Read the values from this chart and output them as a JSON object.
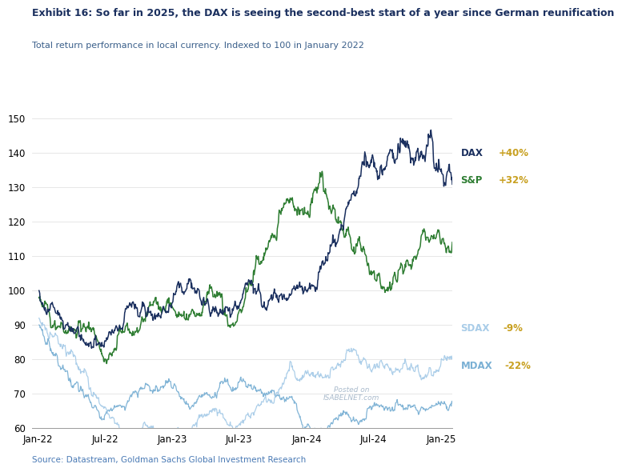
{
  "title": "Exhibit 16: So far in 2025, the DAX is seeing the second-best start of a year since German reunification",
  "subtitle": "Total return performance in local currency. Indexed to 100 in January 2022",
  "source": "Source: Datastream, Goldman Sachs Global Investment Research",
  "ylim": [
    60,
    155
  ],
  "yticks": [
    60,
    70,
    80,
    90,
    100,
    110,
    120,
    130,
    140,
    150
  ],
  "dax_color": "#1a2f5e",
  "sp_color": "#2e7d32",
  "sdax_color": "#a8cce8",
  "mdax_color": "#7ab0d4",
  "title_color": "#1a2f5e",
  "subtitle_color": "#3a5f8a",
  "source_color": "#4a7ab5",
  "pct_color": "#c8a020",
  "watermark_color": "#aabbcc"
}
